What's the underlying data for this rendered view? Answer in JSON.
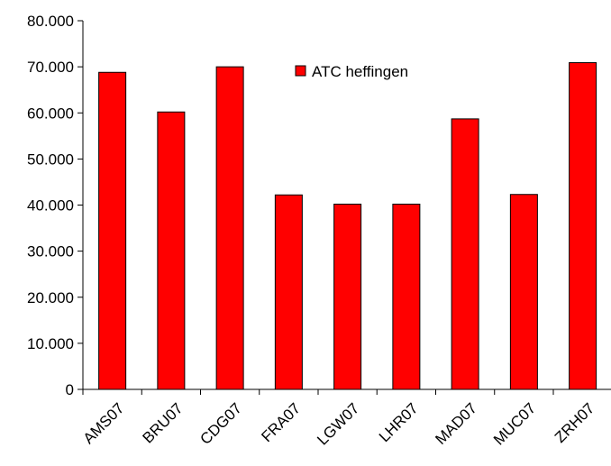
{
  "chart_data": {
    "type": "bar",
    "categories": [
      "AMS07",
      "BRU07",
      "CDG07",
      "FRA07",
      "LGW07",
      "LHR07",
      "MAD07",
      "MUC07",
      "ZRH07"
    ],
    "series": [
      {
        "name": "ATC heffingen",
        "values": [
          68800,
          60200,
          70000,
          42200,
          40200,
          40200,
          58700,
          42300,
          70900
        ],
        "color": "#ff0000"
      }
    ],
    "y_ticks": [
      "0",
      "10.000",
      "20.000",
      "30.000",
      "40.000",
      "50.000",
      "60.000",
      "70.000",
      "80.000"
    ],
    "ylim": [
      0,
      80000
    ],
    "legend_position": "top-center",
    "grid": false
  }
}
